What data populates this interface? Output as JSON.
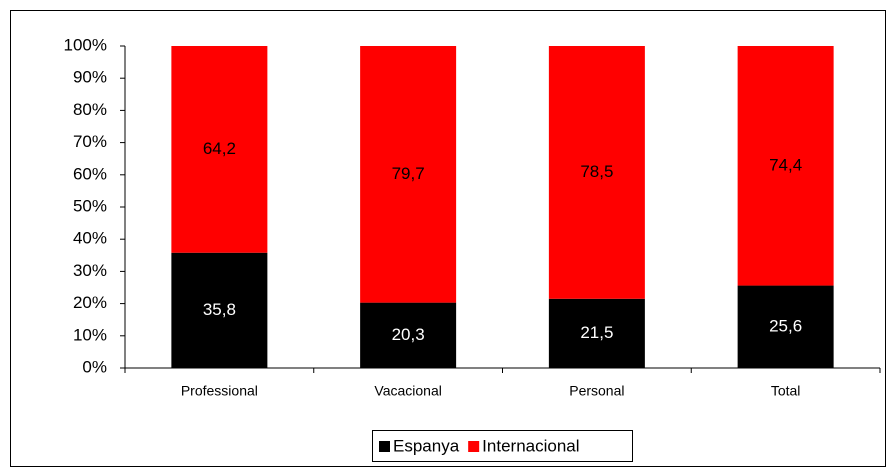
{
  "chart_data": {
    "type": "stacked_bar",
    "categories": [
      "Professional",
      "Vacacional",
      "Personal",
      "Total"
    ],
    "series": [
      {
        "name": "Espanya",
        "color": "#000000",
        "values": [
          35.8,
          20.3,
          21.5,
          25.6
        ],
        "value_labels": [
          "35,8",
          "20,3",
          "21,5",
          "25,6"
        ]
      },
      {
        "name": "Internacional",
        "color": "#ff0000",
        "values": [
          64.2,
          79.7,
          78.5,
          74.4
        ],
        "value_labels": [
          "64,2",
          "79,7",
          "78,5",
          "74,4"
        ]
      }
    ],
    "ylim": [
      0,
      100
    ],
    "yticks": [
      {
        "value": 0,
        "label": "0%"
      },
      {
        "value": 10,
        "label": "10%"
      },
      {
        "value": 20,
        "label": "20%"
      },
      {
        "value": 30,
        "label": "30%"
      },
      {
        "value": 40,
        "label": "40%"
      },
      {
        "value": 50,
        "label": "50%"
      },
      {
        "value": 60,
        "label": "60%"
      },
      {
        "value": 70,
        "label": "70%"
      },
      {
        "value": 80,
        "label": "80%"
      },
      {
        "value": 90,
        "label": "90%"
      },
      {
        "value": 100,
        "label": "100%"
      }
    ],
    "grid": false,
    "legend": "bottom"
  }
}
